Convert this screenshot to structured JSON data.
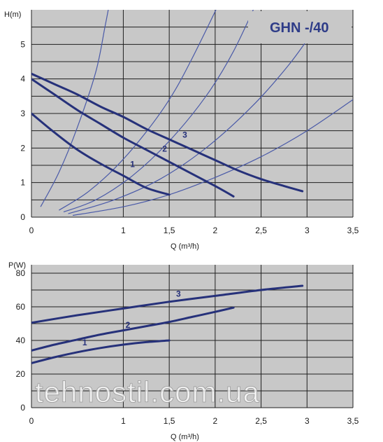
{
  "chart_data": [
    {
      "type": "line",
      "title": "GHN -/40",
      "xlabel": "Q (m³/h)",
      "ylabel": "H(m)",
      "xlim": [
        0,
        3.5
      ],
      "ylim": [
        0,
        6
      ],
      "x_ticks": [
        "0",
        "1",
        "1,5",
        "2",
        "2,5",
        "3",
        "3,5"
      ],
      "y_ticks": [
        "0",
        "1",
        "2",
        "3",
        "4",
        "5"
      ],
      "grid": true,
      "series": [
        {
          "name": "1",
          "x": [
            0,
            0.25,
            0.5,
            0.75,
            1.0,
            1.25,
            1.5
          ],
          "y": [
            3.0,
            2.45,
            1.95,
            1.55,
            1.2,
            0.85,
            0.65
          ]
        },
        {
          "name": "2",
          "x": [
            0,
            0.25,
            0.5,
            0.75,
            1.0,
            1.25,
            1.5,
            1.75,
            2.0,
            2.2
          ],
          "y": [
            4.0,
            3.55,
            3.1,
            2.7,
            2.3,
            1.95,
            1.6,
            1.25,
            0.9,
            0.6
          ]
        },
        {
          "name": "3",
          "x": [
            0,
            0.25,
            0.5,
            0.75,
            1.0,
            1.25,
            1.5,
            1.75,
            2.0,
            2.25,
            2.5,
            2.75,
            2.95
          ],
          "y": [
            4.15,
            3.85,
            3.55,
            3.2,
            2.9,
            2.55,
            2.25,
            1.95,
            1.65,
            1.35,
            1.1,
            0.9,
            0.75
          ]
        }
      ],
      "system_curves": [
        {
          "x": [
            0.1,
            0.3,
            0.5,
            0.7,
            0.8,
            0.87,
            0.9
          ],
          "y": [
            0.3,
            1.3,
            2.6,
            4.2,
            5.5,
            6.5,
            7.0
          ]
        },
        {
          "x": [
            0.3,
            0.6,
            0.9,
            1.2,
            1.5,
            1.75,
            2.1
          ],
          "y": [
            0.2,
            0.7,
            1.4,
            2.3,
            3.4,
            4.6,
            6.5
          ]
        },
        {
          "x": [
            0.35,
            0.7,
            1.1,
            1.5,
            1.9,
            2.2,
            2.5
          ],
          "y": [
            0.15,
            0.5,
            1.2,
            2.2,
            3.5,
            4.8,
            6.5
          ]
        },
        {
          "x": [
            0.4,
            0.9,
            1.4,
            1.9,
            2.4,
            2.8,
            3.1
          ],
          "y": [
            0.1,
            0.5,
            1.1,
            2.0,
            3.2,
            4.4,
            5.5
          ]
        },
        {
          "x": [
            0.45,
            1.0,
            1.5,
            2.0,
            2.5,
            3.0,
            3.5
          ],
          "y": [
            0.05,
            0.3,
            0.65,
            1.15,
            1.75,
            2.5,
            3.4
          ]
        }
      ],
      "curve_labels": [
        {
          "text": "1",
          "x": 1.1,
          "y": 1.45
        },
        {
          "text": "2",
          "x": 1.45,
          "y": 1.9
        },
        {
          "text": "3",
          "x": 1.67,
          "y": 2.3
        }
      ]
    },
    {
      "type": "line",
      "xlabel": "Q (m³/h)",
      "ylabel": "P(W)",
      "xlim": [
        0,
        3.5
      ],
      "ylim": [
        0,
        85
      ],
      "x_ticks": [
        "0",
        "1",
        "1,5",
        "2",
        "2,5",
        "3",
        "3,5"
      ],
      "y_ticks": [
        "0",
        "20",
        "40",
        "60",
        "80"
      ],
      "grid": true,
      "series": [
        {
          "name": "1",
          "x": [
            0,
            0.25,
            0.5,
            0.75,
            1.0,
            1.25,
            1.5
          ],
          "y": [
            26.5,
            30,
            33,
            35.5,
            37.5,
            39,
            40
          ]
        },
        {
          "name": "2",
          "x": [
            0,
            0.25,
            0.5,
            0.75,
            1.0,
            1.25,
            1.5,
            1.75,
            2.0,
            2.2
          ],
          "y": [
            34,
            37.5,
            40.5,
            43.5,
            46,
            48.5,
            51,
            54,
            57,
            59.5
          ]
        },
        {
          "name": "3",
          "x": [
            0,
            0.5,
            1.0,
            1.5,
            2.0,
            2.5,
            2.95
          ],
          "y": [
            50.5,
            55,
            59,
            63,
            66.5,
            70,
            72.5
          ]
        }
      ],
      "curve_labels": [
        {
          "text": "1",
          "x": 0.58,
          "y": 37
        },
        {
          "text": "2",
          "x": 1.05,
          "y": 47.5
        },
        {
          "text": "3",
          "x": 1.6,
          "y": 66
        }
      ]
    }
  ],
  "colors": {
    "curve": "#26317a",
    "system_curve": "#4a5aa8",
    "plot_bg": "#c8c8c8",
    "grid": "#1f1f1f",
    "title": "#2e3c88"
  },
  "watermark": "tehnostil.com.ua"
}
